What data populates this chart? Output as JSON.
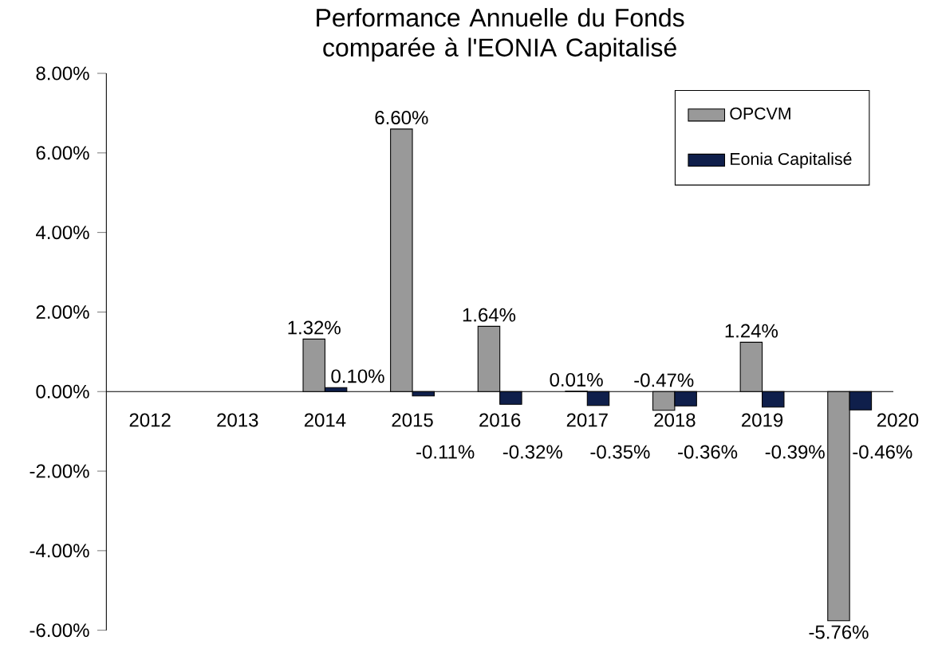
{
  "chart_data": {
    "type": "bar",
    "title": "Performance Annuelle du Fonds comparée à l'EONIA Capitalisé",
    "categories": [
      "2012",
      "2013",
      "2014",
      "2015",
      "2016",
      "2017",
      "2018",
      "2019",
      "2020"
    ],
    "series": [
      {
        "name": "OPCVM",
        "color": "#999999",
        "values": [
          null,
          null,
          1.32,
          6.6,
          1.64,
          0.01,
          -0.47,
          1.24,
          -5.76
        ],
        "value_labels": [
          null,
          null,
          "1.32%",
          "6.60%",
          "1.64%",
          "0.01%",
          "-0.47%",
          "1.24%",
          "-5.76%"
        ]
      },
      {
        "name": "Eonia Capitalisé",
        "color": "#0f1f4b",
        "values": [
          null,
          null,
          0.1,
          -0.11,
          -0.32,
          -0.35,
          -0.36,
          -0.39,
          -0.46
        ],
        "value_labels": [
          null,
          null,
          "0.10%",
          "-0.11%",
          "-0.32%",
          "-0.35%",
          "-0.36%",
          "-0.39%",
          "-0.46%"
        ]
      }
    ],
    "ylim": [
      -6,
      8
    ],
    "yticks": [
      {
        "value": -6,
        "label": "-6.00%"
      },
      {
        "value": -4,
        "label": "-4.00%"
      },
      {
        "value": -2,
        "label": "-2.00%"
      },
      {
        "value": 0,
        "label": "0.00%"
      },
      {
        "value": 2,
        "label": "2.00%"
      },
      {
        "value": 4,
        "label": "4.00%"
      },
      {
        "value": 6,
        "label": "6.00%"
      },
      {
        "value": 8,
        "label": "8.00%"
      }
    ],
    "legend": "top right",
    "grid": false
  }
}
